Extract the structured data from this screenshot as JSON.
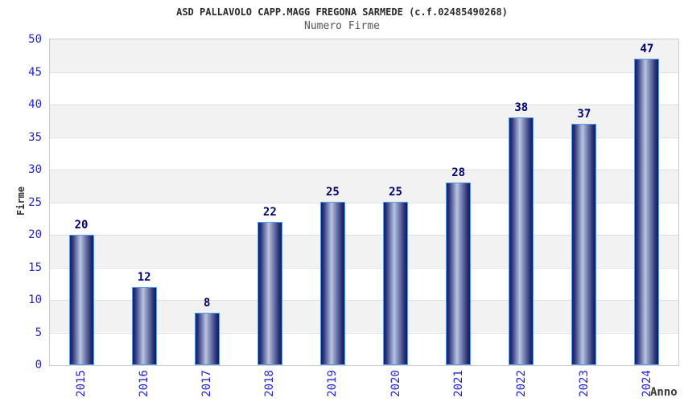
{
  "chart_data": {
    "type": "bar",
    "title": "ASD PALLAVOLO CAPP.MAGG FREGONA SARMEDE (c.f.02485490268)",
    "subtitle": "Numero Firme",
    "categories": [
      "2015",
      "2016",
      "2017",
      "2018",
      "2019",
      "2020",
      "2021",
      "2022",
      "2023",
      "2024"
    ],
    "values": [
      20,
      12,
      8,
      22,
      25,
      25,
      28,
      38,
      37,
      47
    ],
    "xlabel": "Anno",
    "ylabel": "Firme",
    "ylim": [
      0,
      50
    ],
    "yticks": [
      0,
      5,
      10,
      15,
      20,
      25,
      30,
      35,
      40,
      45,
      50
    ],
    "bar_value_labels_shown": true,
    "legend": "none",
    "grid": "horizontal-bands-alternating-gray-white",
    "colors": {
      "tick_label": "#2424d2",
      "value_label": "#00006b",
      "bar_dark": "#1b2266",
      "bar_highlight": "#bcc5e2",
      "bar_border": "#5b9ae6",
      "band_gray": "#f2f2f2",
      "band_white": "#ffffff",
      "plot_border": "#cccccc",
      "title_color": "#2b2b2b",
      "subtitle_color": "#56565c"
    }
  }
}
